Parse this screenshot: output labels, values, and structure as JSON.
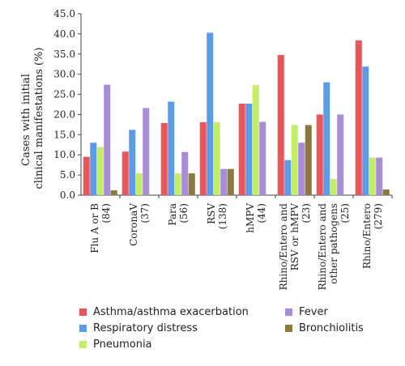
{
  "chart_data": {
    "type": "bar",
    "ylabel": "Cases with initial clinical manifestations (%)",
    "ylim": [
      0,
      45
    ],
    "yticks": [
      "0.0",
      "5.0",
      "10.0",
      "15.0",
      "20.0",
      "25.0",
      "30.0",
      "35.0",
      "40.0",
      "45.0"
    ],
    "grid": false,
    "legend_position": "bottom",
    "categories": [
      {
        "lines": [
          "Flu A or B",
          "(84)"
        ]
      },
      {
        "lines": [
          "CoronaV",
          "(37)"
        ]
      },
      {
        "lines": [
          "Para",
          "(56)"
        ]
      },
      {
        "lines": [
          "RSV",
          "(138)"
        ]
      },
      {
        "lines": [
          "hMPV",
          "(44)"
        ]
      },
      {
        "lines": [
          "Rhino/Entero and",
          "RSV or hMPV",
          "(23)"
        ]
      },
      {
        "lines": [
          "Rhino/Entero and",
          "other pathogens",
          "(25)"
        ]
      },
      {
        "lines": [
          "Rhino/Entero",
          "(279)"
        ]
      }
    ],
    "series": [
      {
        "name": "Asthma/asthma exacerbation",
        "color": "#e8555a",
        "values": [
          9.5,
          10.8,
          17.9,
          18.1,
          22.7,
          34.8,
          20.0,
          38.4
        ]
      },
      {
        "name": "Respiratory distress",
        "color": "#5b9be8",
        "values": [
          13.0,
          16.2,
          23.2,
          40.3,
          22.7,
          8.7,
          28.0,
          31.9
        ]
      },
      {
        "name": "Pneumonia",
        "color": "#c4ee6a",
        "values": [
          11.9,
          5.4,
          5.4,
          18.1,
          27.3,
          17.4,
          4.0,
          9.3
        ]
      },
      {
        "name": "Fever",
        "color": "#a78bd8",
        "values": [
          27.4,
          21.6,
          10.7,
          6.5,
          18.2,
          13.0,
          20.0,
          9.3
        ]
      },
      {
        "name": "Bronchiolitis",
        "color": "#8a7a3e",
        "values": [
          1.2,
          0.0,
          5.4,
          6.5,
          0.0,
          17.4,
          0.0,
          1.4
        ]
      }
    ]
  },
  "legend": {
    "items": [
      {
        "label": "Asthma/asthma exacerbation",
        "color": "#e8555a"
      },
      {
        "label": "Respiratory distress",
        "color": "#5b9be8"
      },
      {
        "label": "Pneumonia",
        "color": "#c4ee6a"
      },
      {
        "label": "Fever",
        "color": "#a78bd8"
      },
      {
        "label": "Bronchiolitis",
        "color": "#8a7a3e"
      }
    ]
  }
}
